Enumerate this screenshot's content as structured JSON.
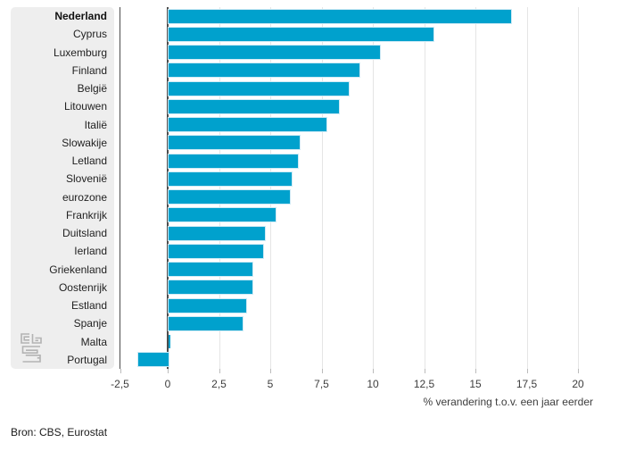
{
  "chart_data": {
    "type": "bar",
    "orientation": "horizontal",
    "categories": [
      "Nederland",
      "Cyprus",
      "Luxemburg",
      "Finland",
      "België",
      "Litouwen",
      "Italië",
      "Slowakije",
      "Letland",
      "Slovenië",
      "eurozone",
      "Frankrijk",
      "Duitsland",
      "Ierland",
      "Griekenland",
      "Oostenrijk",
      "Estland",
      "Spanje",
      "Malta",
      "Portugal"
    ],
    "values": [
      16.7,
      12.9,
      10.3,
      9.3,
      8.8,
      8.3,
      7.7,
      6.4,
      6.3,
      6.0,
      5.9,
      5.2,
      4.7,
      4.6,
      4.1,
      4.1,
      3.8,
      3.6,
      0.1,
      -1.5
    ],
    "highlight_category": "Nederland",
    "title": "",
    "xlabel": "% verandering t.o.v. een jaar eerder",
    "xlim": [
      -2.5,
      20
    ],
    "x_ticks": {
      "values": [
        -2.5,
        0,
        2.5,
        5,
        7.5,
        10,
        12.5,
        15,
        17.5,
        20
      ],
      "labels": [
        "-2,5",
        "0",
        "2,5",
        "5",
        "7,5",
        "10",
        "12,5",
        "15",
        "17,5",
        "20"
      ]
    },
    "grid": true,
    "legend": false,
    "bar_color": "#00a1cd",
    "bar_outline_color": "#cfeaf5",
    "axis_color": "#4d4d4d",
    "panel_color": "#eeeeee"
  },
  "footer": {
    "source": "Bron: CBS, Eurostat"
  },
  "icons": {
    "logo": "cbs-logo"
  }
}
